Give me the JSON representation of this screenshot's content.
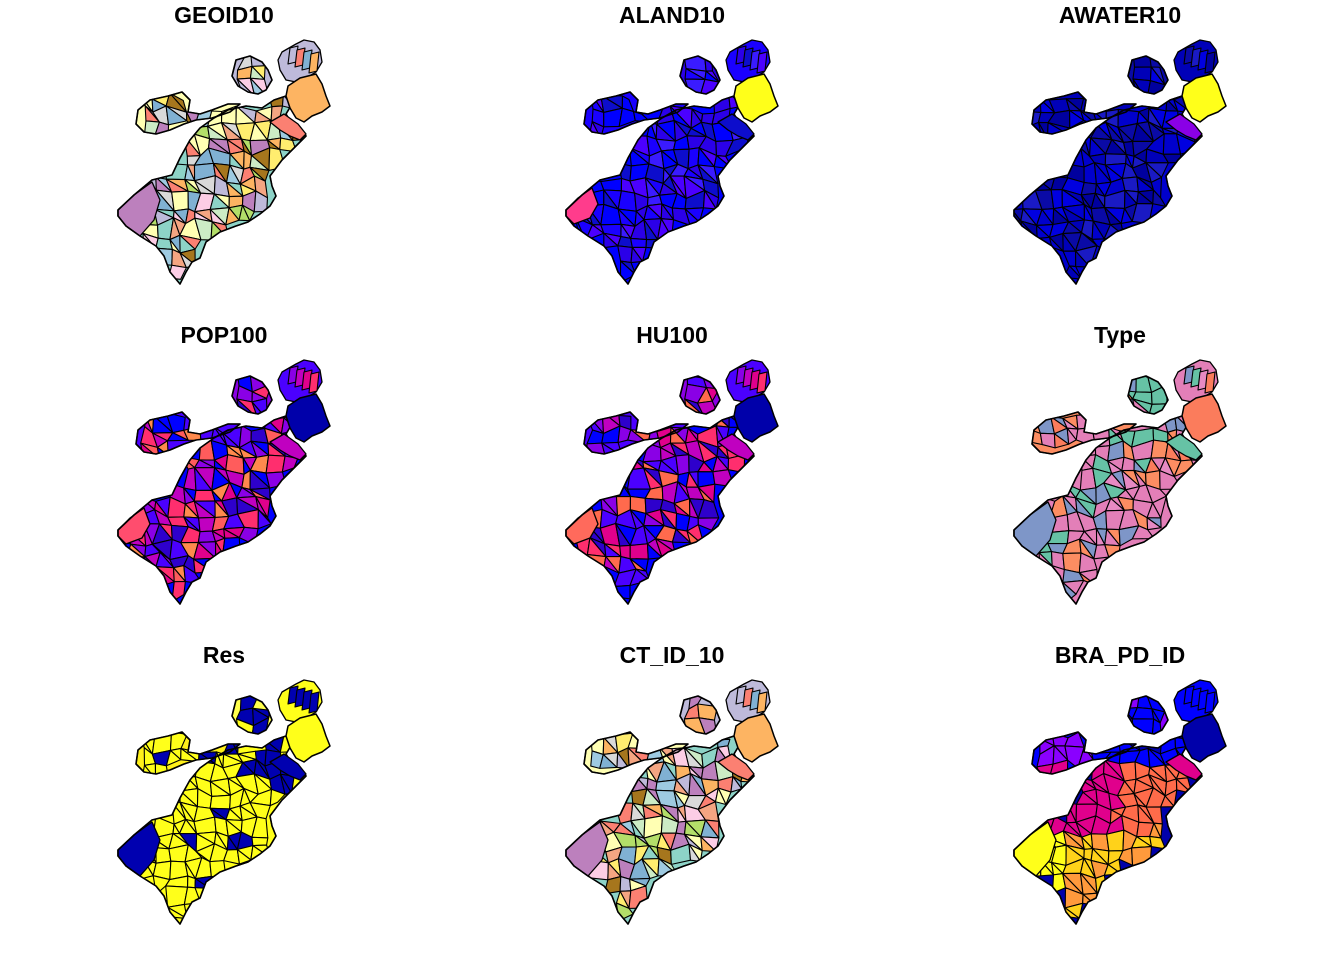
{
  "figure": {
    "panels": [
      {
        "title": "GEOID10",
        "palette": [
          "#8DD3C7",
          "#FFFFB3",
          "#BEBADA",
          "#FB8072",
          "#80B1D3",
          "#FDB462",
          "#B3DE69",
          "#FCCDE5",
          "#D9D9D9",
          "#BC80BD",
          "#CCEBC5",
          "#FFED6F",
          "#9ECAE1",
          "#F4A582",
          "#A6761D"
        ]
      },
      {
        "title": "ALAND10",
        "palette": [
          "#0000FF",
          "#1A00FF",
          "#2B00E8",
          "#0D0DCC",
          "#3A1BFF",
          "#4B00FF"
        ]
      },
      {
        "title": "AWATER10",
        "palette": [
          "#0000CD",
          "#0000B8",
          "#0A0AA6",
          "#1A1AC4",
          "#0000E0",
          "#00009E"
        ]
      },
      {
        "title": "POP100",
        "palette": [
          "#0000FF",
          "#4B00FF",
          "#8A00E6",
          "#C000C0",
          "#E0008C",
          "#FF2E6E",
          "#FF5C5C",
          "#FF8A4D",
          "#2E00CC"
        ]
      },
      {
        "title": "HU100",
        "palette": [
          "#0000FF",
          "#4B00FF",
          "#8A00E6",
          "#C000C0",
          "#E0008C",
          "#FF2E6E",
          "#FF6A4D",
          "#2E00CC"
        ]
      },
      {
        "title": "Type",
        "palette": [
          "#E37FB8",
          "#FC8D62",
          "#7E96C8",
          "#66C2A5",
          "#E78AC3",
          "#FB7C5C"
        ]
      },
      {
        "title": "Res",
        "palette": [
          "#FFFF1A",
          "#FFF01A",
          "#FFFF4D",
          "#0000B0",
          "#00009A"
        ]
      },
      {
        "title": "CT_ID_10",
        "palette": [
          "#8DD3C7",
          "#FFFFB3",
          "#BEBADA",
          "#FB8072",
          "#80B1D3",
          "#FDB462",
          "#B3DE69",
          "#FCCDE5",
          "#D9D9D9",
          "#BC80BD",
          "#CCEBC5",
          "#FFED6F",
          "#9ECAE1",
          "#F4A582",
          "#A6761D"
        ]
      },
      {
        "title": "BRA_PD_ID",
        "palette": [
          "#0000AA",
          "#0000FF",
          "#8A00FF",
          "#E0008C",
          "#FF2E6E",
          "#FF6B4A",
          "#FF9A3C",
          "#FFD21A",
          "#FFFF1A"
        ]
      }
    ],
    "special_regions": {
      "GEOID10": {
        "east_boston_airport": "#FDB462",
        "charlestown_top": "#B3DE69",
        "southwest_big": "#BC80BD"
      },
      "ALAND10": {
        "east_boston_airport": "#FFFF1A",
        "southwest_edge": "#FF3C8C"
      },
      "AWATER10": {
        "east_boston_airport": "#FFFF1A",
        "harbor_strip": "#8A00E6"
      },
      "POP100": {
        "east_boston_airport": "#0000AA",
        "southwest_edge": "#FF4D6E"
      },
      "HU100": {
        "east_boston_airport": "#0000AA",
        "southwest_edge": "#FF6A5C"
      },
      "Type": {
        "east_boston_airport": "#FB7C5C",
        "southwest_big": "#7E96C8"
      },
      "Res": {
        "east_boston_airport": "#FFFF1A",
        "southwest_big": "#0000B0"
      },
      "CT_ID_10": {
        "east_boston_airport": "#FDB462",
        "charlestown_top": "#B3DE69",
        "southwest_big": "#BC80BD"
      },
      "BRA_PD_ID": {
        "east_boston_airport": "#0000AA",
        "southwest_big": "#FFFF1A"
      }
    }
  }
}
